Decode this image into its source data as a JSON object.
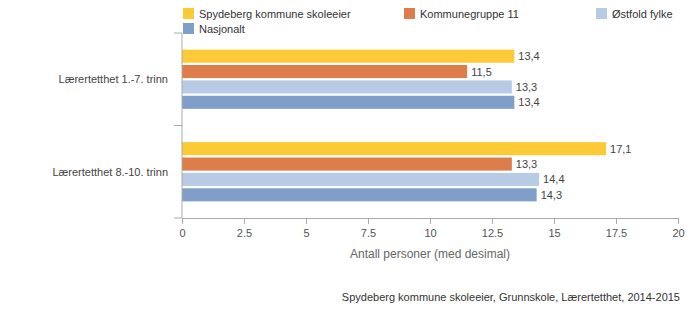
{
  "chart_data": {
    "type": "bar",
    "orientation": "horizontal",
    "data_labels": true,
    "grid": false,
    "legend": "top",
    "categories": [
      "Lærertetthet 1.-7. trinn",
      "Lærertetthet 8.-10. trinn"
    ],
    "series": [
      {
        "name": "Spydeberg kommune skoleeier",
        "color": "#fcc937",
        "values": [
          13.4,
          17.1
        ],
        "value_labels": [
          "13,4",
          "17,1"
        ]
      },
      {
        "name": "Kommunegruppe 11",
        "color": "#dc7d4b",
        "values": [
          11.5,
          13.3
        ],
        "value_labels": [
          "11,5",
          "13,3"
        ]
      },
      {
        "name": "Østfold fylke",
        "color": "#b7cbe4",
        "values": [
          13.3,
          14.4
        ],
        "value_labels": [
          "13,3",
          "14,4"
        ]
      },
      {
        "name": "Nasjonalt",
        "color": "#7f9fc8",
        "values": [
          13.4,
          14.3
        ],
        "value_labels": [
          "13,4",
          "14,3"
        ]
      }
    ],
    "xlim": [
      0,
      20
    ],
    "xticks": [
      0,
      2.5,
      5,
      7.5,
      10,
      12.5,
      15,
      17.5,
      20
    ],
    "xlabel": "Antall personer (med desimal)",
    "caption": "Spydeberg kommune skoleeier, Grunnskole, Lærertetthet, 2014-2015"
  }
}
